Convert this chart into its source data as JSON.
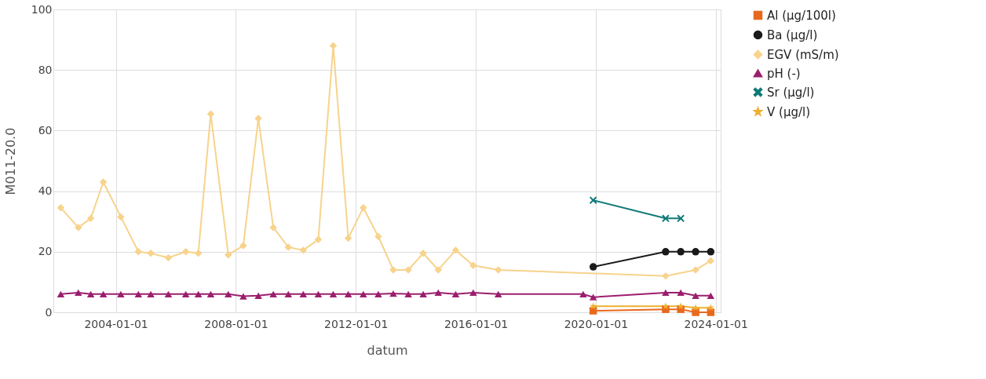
{
  "chart_data": {
    "type": "line",
    "xlabel": "datum",
    "ylabel": "M011-20.0",
    "xlim": [
      "2001-12",
      "2024-03"
    ],
    "ylim": [
      0,
      100
    ],
    "xticks": [
      {
        "value": "2004-01-01",
        "label": "2004-01-01"
      },
      {
        "value": "2008-01-01",
        "label": "2008-01-01"
      },
      {
        "value": "2012-01-01",
        "label": "2012-01-01"
      },
      {
        "value": "2016-01-01",
        "label": "2016-01-01"
      },
      {
        "value": "2020-01-01",
        "label": "2020-01-01"
      },
      {
        "value": "2024-01-01",
        "label": "2024-01-01"
      }
    ],
    "yticks": [
      0,
      20,
      40,
      60,
      80,
      100
    ],
    "grid": true,
    "legend": "right",
    "line_style": "solid",
    "series": [
      {
        "name": "Al (µg/100l)",
        "color": "#e8691c",
        "marker": "square",
        "x": [
          "2019-12",
          "2022-05",
          "2022-11",
          "2023-05",
          "2023-11"
        ],
        "values": [
          0.5,
          1,
          1,
          0,
          0
        ]
      },
      {
        "name": "Ba (µg/l)",
        "color": "#1a1a1a",
        "marker": "circle",
        "x": [
          "2019-12",
          "2022-05",
          "2022-11",
          "2023-05",
          "2023-11"
        ],
        "values": [
          15,
          20,
          20,
          20,
          20
        ]
      },
      {
        "name": "EGV (mS/m)",
        "color": "#f7d38c",
        "marker": "diamond",
        "x": [
          "2002-03",
          "2002-10",
          "2003-03",
          "2003-08",
          "2004-03",
          "2004-10",
          "2005-03",
          "2005-10",
          "2006-05",
          "2006-10",
          "2007-03",
          "2007-10",
          "2008-04",
          "2008-10",
          "2009-04",
          "2009-10",
          "2010-04",
          "2010-10",
          "2011-04",
          "2011-10",
          "2012-04",
          "2012-10",
          "2013-04",
          "2013-10",
          "2014-04",
          "2014-10",
          "2015-05",
          "2015-12",
          "2016-10",
          "2022-05",
          "2023-05",
          "2023-11"
        ],
        "values": [
          34.5,
          28,
          31,
          43,
          31.5,
          20,
          19.5,
          18,
          20,
          19.5,
          65.5,
          19,
          22,
          64,
          28,
          21.5,
          20.5,
          24,
          88,
          24.5,
          34.5,
          25,
          14,
          14,
          19.5,
          14,
          20.5,
          15.5,
          14,
          12,
          14,
          17
        ]
      },
      {
        "name": "pH (-)",
        "color": "#9b1f6e",
        "marker": "triangle",
        "x": [
          "2002-03",
          "2002-10",
          "2003-03",
          "2003-08",
          "2004-03",
          "2004-10",
          "2005-03",
          "2005-10",
          "2006-05",
          "2006-10",
          "2007-03",
          "2007-10",
          "2008-04",
          "2008-10",
          "2009-04",
          "2009-10",
          "2010-04",
          "2010-10",
          "2011-04",
          "2011-10",
          "2012-04",
          "2012-10",
          "2013-04",
          "2013-10",
          "2014-04",
          "2014-10",
          "2015-05",
          "2015-12",
          "2016-10",
          "2019-08",
          "2019-12",
          "2022-05",
          "2022-11",
          "2023-05",
          "2023-11"
        ],
        "values": [
          6,
          6.5,
          6,
          6,
          6,
          6,
          6,
          6,
          6,
          6,
          6,
          6,
          5.3,
          5.5,
          6,
          6,
          6,
          6,
          6,
          6,
          6,
          6,
          6.2,
          6,
          6,
          6.5,
          6,
          6.5,
          6,
          6,
          5,
          6.5,
          6.5,
          5.5,
          5.5
        ]
      },
      {
        "name": "Sr (µg/l)",
        "color": "#0f7a78",
        "marker": "cross",
        "x": [
          "2019-12",
          "2022-05",
          "2022-11"
        ],
        "values": [
          37,
          31,
          31
        ]
      },
      {
        "name": "V (µg/l)",
        "color": "#f0b030",
        "marker": "star",
        "x": [
          "2019-12",
          "2022-05",
          "2022-11",
          "2023-05",
          "2023-11"
        ],
        "values": [
          2,
          2,
          2,
          1.5,
          1.5
        ]
      }
    ]
  }
}
